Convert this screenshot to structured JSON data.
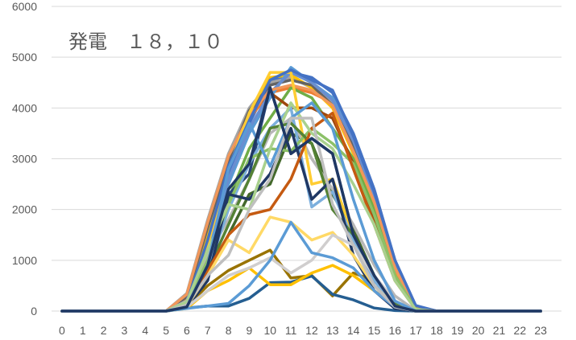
{
  "chart_data": {
    "type": "line",
    "title": "発電　１８，１０",
    "xlabel": "",
    "ylabel": "",
    "x": [
      0,
      1,
      2,
      3,
      4,
      5,
      6,
      7,
      8,
      9,
      10,
      11,
      12,
      13,
      14,
      15,
      16,
      17,
      18,
      19,
      20,
      21,
      22,
      23
    ],
    "x_tick_labels": [
      "0",
      "1",
      "2",
      "3",
      "4",
      "5",
      "6",
      "7",
      "8",
      "9",
      "10",
      "11",
      "12",
      "13",
      "14",
      "15",
      "16",
      "17",
      "18",
      "19",
      "20",
      "21",
      "22",
      "23"
    ],
    "ylim": [
      0,
      6000
    ],
    "y_ticks": [
      0,
      1000,
      2000,
      3000,
      4000,
      5000,
      6000
    ],
    "y_tick_labels": [
      "0",
      "1000",
      "2000",
      "3000",
      "4000",
      "5000",
      "6000"
    ],
    "grid": "horizontal",
    "legend": "none",
    "series": [
      {
        "color": "#4472C4",
        "values": [
          0,
          0,
          0,
          0,
          0,
          0,
          150,
          1300,
          2700,
          3700,
          4500,
          4700,
          4600,
          4300,
          3500,
          2400,
          1000,
          100,
          0,
          0,
          0,
          0,
          0,
          0
        ]
      },
      {
        "color": "#ED7D31",
        "values": [
          0,
          0,
          0,
          0,
          0,
          0,
          300,
          1700,
          3000,
          3800,
          4300,
          4400,
          4300,
          4100,
          3200,
          2200,
          900,
          60,
          0,
          0,
          0,
          0,
          0,
          0
        ]
      },
      {
        "color": "#A5A5A5",
        "values": [
          0,
          0,
          0,
          0,
          0,
          0,
          350,
          1800,
          3100,
          4000,
          4500,
          4600,
          4400,
          4100,
          3300,
          2300,
          950,
          70,
          0,
          0,
          0,
          0,
          0,
          0
        ]
      },
      {
        "color": "#FFC000",
        "values": [
          0,
          0,
          0,
          0,
          0,
          0,
          250,
          1500,
          2900,
          3800,
          4600,
          4650,
          4400,
          4000,
          3100,
          2100,
          800,
          40,
          0,
          0,
          0,
          0,
          0,
          0
        ]
      },
      {
        "color": "#5B9BD5",
        "values": [
          0,
          0,
          0,
          0,
          0,
          0,
          200,
          1200,
          2500,
          3500,
          4200,
          4800,
          4500,
          4200,
          3400,
          2300,
          900,
          50,
          0,
          0,
          0,
          0,
          0,
          0
        ]
      },
      {
        "color": "#70AD47",
        "values": [
          0,
          0,
          0,
          0,
          0,
          0,
          150,
          1000,
          2200,
          3200,
          3800,
          4400,
          4200,
          3600,
          3000,
          2000,
          700,
          40,
          0,
          0,
          0,
          0,
          0,
          0
        ]
      },
      {
        "color": "#264478",
        "values": [
          0,
          0,
          0,
          0,
          0,
          0,
          120,
          900,
          2300,
          2700,
          4400,
          3100,
          3400,
          3100,
          1500,
          700,
          100,
          0,
          0,
          0,
          0,
          0,
          0,
          0
        ]
      },
      {
        "color": "#9E480E",
        "values": [
          0,
          0,
          0,
          0,
          0,
          0,
          300,
          1700,
          3000,
          3900,
          4300,
          4000,
          4000,
          3800,
          2900,
          1800,
          700,
          30,
          0,
          0,
          0,
          0,
          0,
          0
        ]
      },
      {
        "color": "#636363",
        "values": [
          0,
          0,
          0,
          0,
          0,
          0,
          280,
          1650,
          2950,
          3950,
          4450,
          4550,
          4450,
          4050,
          3250,
          2250,
          850,
          60,
          0,
          0,
          0,
          0,
          0,
          0
        ]
      },
      {
        "color": "#997300",
        "values": [
          0,
          0,
          0,
          0,
          0,
          0,
          100,
          500,
          800,
          1000,
          1200,
          650,
          700,
          300,
          750,
          600,
          150,
          0,
          0,
          0,
          0,
          0,
          0,
          0
        ]
      },
      {
        "color": "#255E91",
        "values": [
          0,
          0,
          0,
          0,
          0,
          0,
          60,
          100,
          100,
          250,
          560,
          570,
          690,
          330,
          220,
          60,
          10,
          0,
          0,
          0,
          0,
          0,
          0,
          0
        ]
      },
      {
        "color": "#43682B",
        "values": [
          0,
          0,
          0,
          0,
          0,
          0,
          100,
          700,
          1500,
          2300,
          2500,
          3500,
          3300,
          2300,
          1600,
          700,
          150,
          0,
          0,
          0,
          0,
          0,
          0,
          0
        ]
      },
      {
        "color": "#698ED0",
        "values": [
          0,
          0,
          0,
          0,
          0,
          0,
          200,
          1300,
          2600,
          3600,
          4300,
          4700,
          4500,
          4150,
          3350,
          2250,
          850,
          50,
          0,
          0,
          0,
          0,
          0,
          0
        ]
      },
      {
        "color": "#F1975A",
        "values": [
          0,
          0,
          0,
          0,
          0,
          0,
          330,
          1750,
          3050,
          3850,
          4350,
          4450,
          4350,
          4050,
          3150,
          2150,
          850,
          50,
          0,
          0,
          0,
          0,
          0,
          0
        ]
      },
      {
        "color": "#B7B7B7",
        "values": [
          0,
          0,
          0,
          0,
          0,
          0,
          200,
          1100,
          1800,
          2600,
          3500,
          3800,
          3000,
          2400,
          1700,
          900,
          300,
          10,
          0,
          0,
          0,
          0,
          0,
          0
        ]
      },
      {
        "color": "#FFCD33",
        "values": [
          0,
          0,
          0,
          0,
          0,
          0,
          150,
          1300,
          2800,
          3900,
          4700,
          4700,
          2500,
          2600,
          1500,
          500,
          100,
          0,
          0,
          0,
          0,
          0,
          0,
          0
        ]
      },
      {
        "color": "#7CAFDD",
        "values": [
          0,
          0,
          0,
          0,
          0,
          0,
          100,
          800,
          2000,
          2900,
          3600,
          4000,
          2050,
          2350,
          1400,
          600,
          100,
          0,
          0,
          0,
          0,
          0,
          0,
          0
        ]
      },
      {
        "color": "#8CC168",
        "values": [
          0,
          0,
          0,
          0,
          0,
          0,
          150,
          1000,
          2100,
          3000,
          3200,
          3150,
          3600,
          3300,
          2900,
          1900,
          700,
          40,
          0,
          0,
          0,
          0,
          0,
          0
        ]
      },
      {
        "color": "#4472C4",
        "values": [
          0,
          0,
          0,
          0,
          0,
          0,
          170,
          1400,
          2850,
          3750,
          4550,
          4750,
          4550,
          4350,
          3450,
          2350,
          1000,
          110,
          0,
          0,
          0,
          0,
          0,
          0
        ]
      },
      {
        "color": "#548235",
        "values": [
          0,
          0,
          0,
          0,
          0,
          0,
          100,
          800,
          1700,
          2600,
          3600,
          3700,
          3300,
          2000,
          1500,
          700,
          150,
          0,
          0,
          0,
          0,
          0,
          0,
          0
        ]
      },
      {
        "color": "#203864",
        "values": [
          0,
          0,
          0,
          0,
          0,
          0,
          80,
          600,
          2300,
          2200,
          2700,
          3600,
          2200,
          2600,
          1100,
          400,
          50,
          0,
          0,
          0,
          0,
          0,
          0,
          0
        ]
      },
      {
        "color": "#C55A11",
        "values": [
          0,
          0,
          0,
          0,
          0,
          0,
          150,
          800,
          1500,
          1900,
          2000,
          2600,
          3600,
          3900,
          2800,
          1700,
          600,
          30,
          0,
          0,
          0,
          0,
          0,
          0
        ]
      },
      {
        "color": "#A9D18E",
        "values": [
          0,
          0,
          0,
          0,
          0,
          0,
          180,
          1200,
          2100,
          2000,
          3200,
          4100,
          3500,
          3200,
          2500,
          1700,
          600,
          30,
          0,
          0,
          0,
          0,
          0,
          0
        ]
      },
      {
        "color": "#FFC000",
        "values": [
          0,
          0,
          0,
          0,
          0,
          0,
          50,
          400,
          600,
          850,
          520,
          520,
          750,
          900,
          700,
          400,
          100,
          0,
          0,
          0,
          0,
          0,
          0,
          0
        ]
      },
      {
        "color": "#FFD966",
        "values": [
          0,
          0,
          0,
          0,
          0,
          0,
          100,
          700,
          1400,
          1150,
          1850,
          1750,
          1400,
          1550,
          1100,
          500,
          100,
          0,
          0,
          0,
          0,
          0,
          0,
          0
        ]
      },
      {
        "color": "#D0CECE",
        "values": [
          0,
          0,
          0,
          0,
          0,
          0,
          80,
          400,
          700,
          850,
          1050,
          750,
          1000,
          1500,
          1300,
          700,
          200,
          0,
          0,
          0,
          0,
          0,
          0,
          0
        ]
      },
      {
        "color": "#5B9BD5",
        "values": [
          0,
          0,
          0,
          0,
          0,
          0,
          50,
          100,
          150,
          500,
          1000,
          1750,
          1150,
          1050,
          850,
          400,
          80,
          0,
          0,
          0,
          0,
          0,
          0,
          0
        ]
      },
      {
        "color": "#5B9BD5",
        "values": [
          0,
          0,
          0,
          0,
          0,
          0,
          100,
          900,
          2800,
          3700,
          2850,
          3800,
          4100,
          3600,
          2200,
          1000,
          200,
          0,
          0,
          0,
          0,
          0,
          0,
          0
        ]
      },
      {
        "color": "#BFBFBF",
        "values": [
          0,
          0,
          0,
          0,
          0,
          0,
          120,
          700,
          1100,
          2000,
          2600,
          3800,
          3800,
          2100,
          1300,
          500,
          80,
          0,
          0,
          0,
          0,
          0,
          0,
          0
        ]
      },
      {
        "color": "#1F3864",
        "values": [
          0,
          0,
          0,
          0,
          0,
          0,
          80,
          900,
          2400,
          2900,
          4400,
          3100,
          3400,
          3100,
          1500,
          700,
          100,
          0,
          0,
          0,
          0,
          0,
          0,
          0
        ]
      }
    ]
  }
}
